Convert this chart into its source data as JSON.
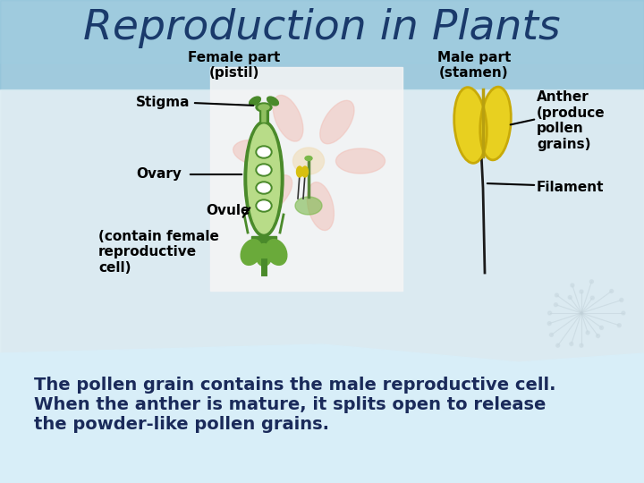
{
  "title": "Reproduction in Plants",
  "title_color": "#1a3a6b",
  "title_fontsize": 34,
  "female_label": "Female part\n(pistil)",
  "male_label": "Male part\n(stamen)",
  "stigma_label": "Stigma",
  "ovary_label": "Ovary",
  "ovule_label": "Ovule",
  "ovule_sub_label": "(contain female\nreproductive\ncell)",
  "anther_label": "Anther\n(produce\npollen\ngrains)",
  "filament_label": "Filament",
  "body_text_line1": "The pollen grain contains the male reproductive cell.",
  "body_text_line2": "When the anther is mature, it splits open to release",
  "body_text_line3": "the powder-like pollen grains.",
  "body_text_color": "#1a2a5a",
  "body_text_fontsize": 14,
  "label_color": "#000000",
  "label_fontsize": 11,
  "pistil_green_dark": "#4a8a2a",
  "pistil_green_mid": "#6aaa3a",
  "pistil_green_light": "#90c060",
  "anther_yellow": "#e8d020",
  "anther_yellow2": "#d4bc10"
}
